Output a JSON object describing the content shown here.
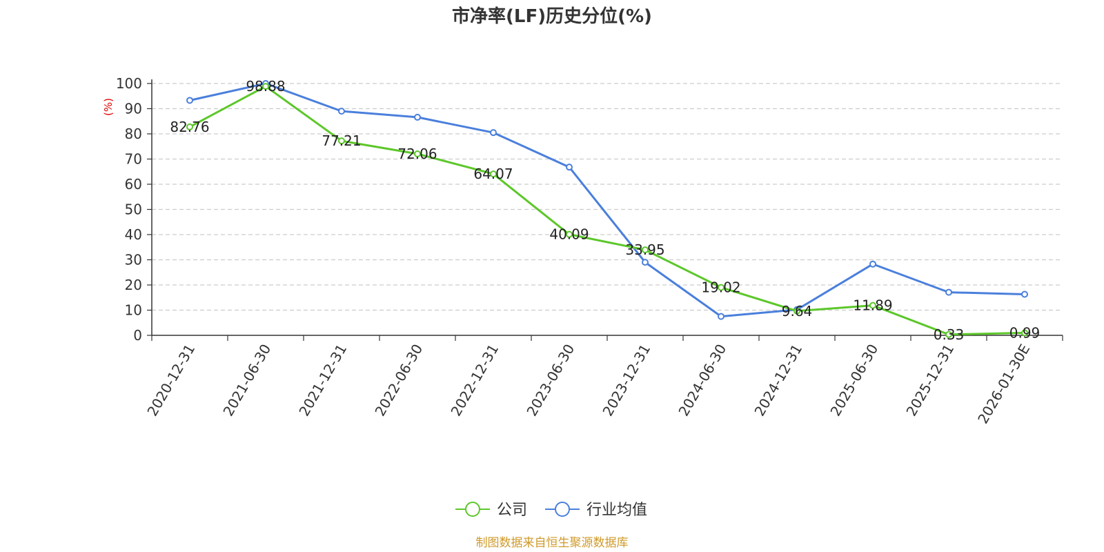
{
  "chart_data": {
    "type": "line",
    "title": "市净率(LF)历史分位(%)",
    "ylabel": "(%)",
    "ylim": [
      0,
      100
    ],
    "yticks": [
      0,
      10,
      20,
      30,
      40,
      50,
      60,
      70,
      80,
      90,
      100
    ],
    "grid": true,
    "legend_position": "bottom",
    "categories": [
      "2020-12-31",
      "2021-06-30",
      "2021-12-31",
      "2022-06-30",
      "2022-12-31",
      "2023-06-30",
      "2023-12-31",
      "2024-06-30",
      "2024-12-31",
      "2025-06-30",
      "2025-12-31",
      "2026-01-30E"
    ],
    "series": [
      {
        "name": "公司",
        "color": "#5cc72a",
        "values": [
          82.76,
          98.88,
          77.21,
          72.06,
          64.07,
          40.09,
          33.95,
          19.02,
          9.64,
          11.89,
          0.33,
          0.99
        ],
        "labels": [
          "82.76",
          "98.88",
          "77.21",
          "72.06",
          "64.07",
          "40.09",
          "33.95",
          "19.02",
          "9.64",
          "11.89",
          "0.33",
          "0.99"
        ]
      },
      {
        "name": "行业均值",
        "color": "#4a7fdc",
        "values": [
          93.3,
          100.0,
          89.0,
          86.6,
          80.5,
          66.8,
          29.0,
          7.5,
          10.2,
          28.3,
          17.1,
          16.3
        ]
      }
    ]
  },
  "source_text": "制图数据来自恒生聚源数据库",
  "colors": {
    "axis": "#333333",
    "grid": "#cccccc",
    "ylabel": "#e00000",
    "source": "#d09a2a"
  }
}
